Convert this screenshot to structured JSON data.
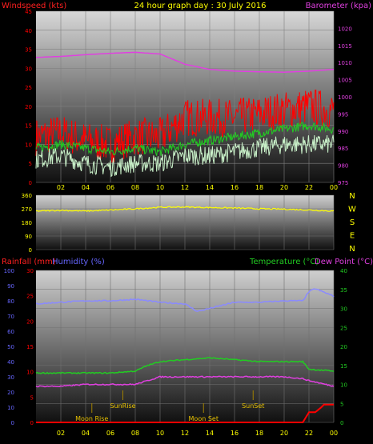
{
  "header": {
    "left_title": "Windspeed (kts)",
    "center_title": "24 hour graph day : 30 July 2016",
    "right_title": "Barometer (kpa)"
  },
  "mid_header": {
    "rain_label": "Rainfall (mm)",
    "humidity_label": "Humidity (%)",
    "temp_label": "Temperature (°C)",
    "dew_label": "Dew Point (°C)"
  },
  "colors": {
    "red": "#ff0000",
    "yellow": "#ffff00",
    "magenta": "#e040e0",
    "green": "#22cc22",
    "white": "#ffffff",
    "blue": "#6666ff",
    "mint": "#c8f0c8",
    "periwinkle": "#8a8aff"
  },
  "chart_data": [
    {
      "type": "line",
      "panel": "wind",
      "x_ticks": [
        "02",
        "04",
        "06",
        "08",
        "10",
        "12",
        "14",
        "16",
        "18",
        "20",
        "22",
        "00"
      ],
      "y_left": [
        0,
        5,
        10,
        15,
        20,
        25,
        30,
        35,
        40,
        45
      ],
      "y_left_range": [
        0,
        45
      ],
      "y_right": [
        975,
        980,
        985,
        990,
        995,
        1000,
        1005,
        1010,
        1015,
        1020
      ],
      "y_right_range": [
        975,
        1025
      ],
      "series": [
        {
          "kind": "gust",
          "color": "red",
          "x": [
            0,
            2,
            4,
            6,
            8,
            10,
            12,
            14,
            16,
            18,
            20,
            22,
            24
          ],
          "y": [
            12,
            13,
            11,
            10,
            12,
            12,
            17,
            17,
            17,
            18,
            19,
            20,
            19
          ]
        },
        {
          "kind": "avg",
          "color": "green",
          "x": [
            0,
            2,
            4,
            6,
            8,
            10,
            12,
            14,
            16,
            18,
            20,
            22,
            24
          ],
          "y": [
            9,
            10,
            9,
            8,
            9,
            8,
            10,
            11,
            12,
            13,
            14,
            15,
            14
          ]
        },
        {
          "kind": "wind",
          "color": "mint",
          "x": [
            0,
            2,
            4,
            6,
            8,
            10,
            12,
            14,
            16,
            18,
            20,
            22,
            24
          ],
          "y": [
            6,
            7,
            5,
            4,
            5,
            5,
            7,
            7,
            8,
            9,
            10,
            10,
            10
          ]
        },
        {
          "kind": "baro",
          "color": "magenta",
          "x": [
            0,
            2,
            4,
            6,
            8,
            10,
            12,
            14,
            16,
            18,
            20,
            22,
            24
          ],
          "y": [
            1011.5,
            1011.8,
            1012.3,
            1012.7,
            1013,
            1012.5,
            1009.5,
            1008,
            1007.5,
            1007.3,
            1007.2,
            1007.5,
            1008
          ]
        }
      ]
    },
    {
      "type": "line",
      "panel": "direction",
      "y_ticks": [
        0,
        90,
        180,
        270,
        360
      ],
      "y_range": [
        0,
        360
      ],
      "compass": [
        "N",
        "W",
        "S",
        "E",
        "N"
      ],
      "series": [
        {
          "color": "yellow",
          "x": [
            0,
            2,
            4,
            6,
            8,
            10,
            12,
            14,
            16,
            18,
            20,
            22,
            24
          ],
          "y": [
            255,
            260,
            255,
            262,
            270,
            280,
            282,
            278,
            275,
            270,
            268,
            262,
            255
          ]
        }
      ]
    },
    {
      "type": "line",
      "panel": "temp",
      "x_ticks": [
        "02",
        "04",
        "06",
        "08",
        "10",
        "12",
        "14",
        "16",
        "18",
        "20",
        "22",
        "00"
      ],
      "y_left_humidity": [
        0,
        10,
        20,
        30,
        40,
        50,
        60,
        70,
        80,
        90,
        100
      ],
      "y_left_humidity_range": [
        0,
        100
      ],
      "y_left_rain": [
        0,
        5,
        10,
        15,
        20,
        25,
        30
      ],
      "y_left_rain_range": [
        0,
        30
      ],
      "y_right_temp": [
        0,
        5,
        10,
        15,
        20,
        25,
        30,
        35,
        40
      ],
      "y_right_temp_range": [
        0,
        40
      ],
      "events": [
        {
          "label": "Moon Rise",
          "hour": 4.5,
          "row": "low"
        },
        {
          "label": "SunRise",
          "hour": 7,
          "row": "high"
        },
        {
          "label": "Moon Set",
          "hour": 13.5,
          "row": "low"
        },
        {
          "label": "SunSet",
          "hour": 17.5,
          "row": "high"
        }
      ],
      "series": [
        {
          "name": "Humidity",
          "color": "periwinkle",
          "x": [
            0,
            2,
            4,
            6,
            8,
            10,
            12,
            13,
            14,
            16,
            18,
            20,
            21.5,
            22,
            22.5,
            24
          ],
          "y": [
            78,
            79,
            80,
            80,
            81,
            79,
            78,
            73,
            75,
            79,
            79,
            80,
            80,
            86,
            88,
            83
          ]
        },
        {
          "name": "Temperature",
          "color": "green",
          "x": [
            0,
            2,
            4,
            6,
            8,
            9,
            10,
            12,
            14,
            16,
            18,
            20,
            21.5,
            22,
            24
          ],
          "y": [
            13,
            13,
            13,
            13,
            13.5,
            15,
            16,
            16.5,
            17,
            16.5,
            16,
            16,
            16,
            14,
            13.5
          ]
        },
        {
          "name": "Dew Point",
          "color": "magenta",
          "x": [
            0,
            2,
            4,
            6,
            8,
            9,
            10,
            12,
            14,
            16,
            18,
            20,
            21.5,
            22,
            24
          ],
          "y": [
            9.5,
            9.5,
            10,
            10,
            10,
            11,
            12,
            12,
            12,
            12,
            12,
            12,
            11.5,
            11,
            9.5
          ]
        },
        {
          "name": "Rainfall",
          "color": "red",
          "x": [
            0,
            21.5,
            22,
            22.5,
            23,
            23.2,
            24
          ],
          "y": [
            0,
            0,
            2,
            2,
            3,
            3.5,
            3.5
          ]
        }
      ]
    }
  ]
}
